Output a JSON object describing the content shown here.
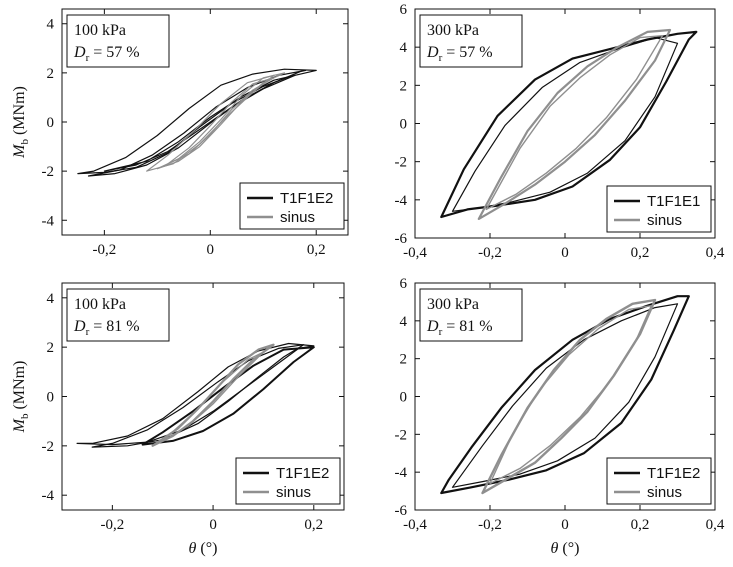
{
  "chart_data": [
    {
      "type": "line",
      "id": "p1",
      "annotation": {
        "line1": "100 kPa",
        "line2_symbol": "D",
        "line2_sub": "r",
        "line2_rest": " = 57 %"
      },
      "xlim": [
        -0.28,
        0.26
      ],
      "ylim": [
        -4.6,
        4.6
      ],
      "xticks": [
        -0.2,
        0,
        0.2
      ],
      "xtick_labels": [
        "-0,2",
        "0",
        "0,2"
      ],
      "yticks": [
        -4,
        -2,
        0,
        2,
        4
      ],
      "ytick_labels": [
        "-4",
        "-2",
        "0",
        "2",
        "4"
      ],
      "ylabel_main": "M",
      "ylabel_sub": "b",
      "ylabel_unit": " (MNm)",
      "xlabel_symbol": "",
      "xlabel_unit": "",
      "legend": [
        {
          "label": "T1F1E2",
          "color": "#111111"
        },
        {
          "label": "sinus",
          "color": "#8f8f8f"
        }
      ],
      "grid": false,
      "series": [
        {
          "color": "#111111",
          "width": 1.2,
          "x": [
            -0.25,
            -0.2,
            -0.14,
            -0.08,
            -0.02,
            0.04,
            0.1,
            0.15,
            0.2,
            0.14,
            0.08,
            0.02,
            -0.04,
            -0.1,
            -0.16,
            -0.22,
            -0.25
          ],
          "y": [
            -2.1,
            -2.05,
            -1.85,
            -1.25,
            -0.2,
            0.75,
            1.45,
            1.85,
            2.1,
            2.15,
            1.95,
            1.5,
            0.55,
            -0.55,
            -1.45,
            -2.0,
            -2.1
          ]
        },
        {
          "color": "#111111",
          "width": 1.2,
          "x": [
            -0.23,
            -0.18,
            -0.12,
            -0.06,
            0.0,
            0.06,
            0.12,
            0.17,
            0.18,
            0.13,
            0.07,
            0.01,
            -0.05,
            -0.11,
            -0.17,
            -0.23
          ],
          "y": [
            -2.2,
            -2.1,
            -1.75,
            -1.05,
            -0.05,
            0.9,
            1.6,
            2.05,
            2.1,
            1.9,
            1.4,
            0.6,
            -0.45,
            -1.35,
            -1.95,
            -2.2
          ]
        },
        {
          "color": "#111111",
          "width": 1.2,
          "x": [
            -0.2,
            -0.14,
            -0.08,
            -0.02,
            0.04,
            0.1,
            0.16,
            0.12,
            0.06,
            0.0,
            -0.06,
            -0.12,
            -0.2
          ],
          "y": [
            -2.0,
            -1.75,
            -1.2,
            -0.3,
            0.6,
            1.35,
            1.9,
            1.7,
            1.05,
            0.2,
            -0.8,
            -1.6,
            -2.0
          ]
        },
        {
          "color": "#8f8f8f",
          "width": 1.2,
          "x": [
            -0.1,
            -0.06,
            -0.02,
            0.02,
            0.06,
            0.1,
            0.14,
            0.1,
            0.06,
            0.02,
            -0.02,
            -0.06,
            -0.1
          ],
          "y": [
            -1.9,
            -1.6,
            -1.0,
            -0.1,
            0.85,
            1.6,
            2.0,
            1.8,
            1.1,
            0.1,
            -0.8,
            -1.5,
            -1.9
          ]
        },
        {
          "color": "#8f8f8f",
          "width": 1.2,
          "x": [
            -0.08,
            -0.04,
            0.0,
            0.04,
            0.08,
            0.12,
            0.08,
            0.04,
            0.0,
            -0.04,
            -0.08
          ],
          "y": [
            -1.7,
            -1.3,
            -0.5,
            0.5,
            1.3,
            1.8,
            1.55,
            0.8,
            -0.15,
            -1.05,
            -1.7
          ]
        },
        {
          "color": "#8f8f8f",
          "width": 1.2,
          "x": [
            -0.12,
            -0.07,
            -0.02,
            0.03,
            0.08,
            0.12,
            0.07,
            0.02,
            -0.03,
            -0.08,
            -0.12
          ],
          "y": [
            -2.0,
            -1.7,
            -0.9,
            0.2,
            1.2,
            1.9,
            1.6,
            0.75,
            -0.35,
            -1.35,
            -2.0
          ]
        }
      ]
    },
    {
      "type": "line",
      "id": "p2",
      "annotation": {
        "line1": "300 kPa",
        "line2_symbol": "D",
        "line2_sub": "r",
        "line2_rest": " = 57 %"
      },
      "xlim": [
        -0.4,
        0.4
      ],
      "ylim": [
        -6,
        6
      ],
      "xticks": [
        -0.4,
        -0.2,
        0,
        0.2,
        0.4
      ],
      "xtick_labels": [
        "-0,4",
        "-0,2",
        "0",
        "0,2",
        "0,4"
      ],
      "yticks": [
        -6,
        -4,
        -2,
        0,
        2,
        4,
        6
      ],
      "ytick_labels": [
        "-6",
        "-4",
        "-2",
        "0",
        "2",
        "4",
        "6"
      ],
      "ylabel_main": "",
      "ylabel_sub": "",
      "ylabel_unit": "",
      "xlabel_symbol": "",
      "xlabel_unit": "",
      "legend": [
        {
          "label": "T1F1E1",
          "color": "#111111"
        },
        {
          "label": "sinus",
          "color": "#8f8f8f"
        }
      ],
      "grid": false,
      "series": [
        {
          "color": "#111111",
          "width": 2.2,
          "x": [
            -0.33,
            -0.26,
            -0.18,
            -0.08,
            0.02,
            0.12,
            0.2,
            0.27,
            0.33,
            0.35,
            0.3,
            0.22,
            0.12,
            0.02,
            -0.08,
            -0.18,
            -0.27,
            -0.33
          ],
          "y": [
            -4.9,
            -4.5,
            -4.3,
            -4.0,
            -3.3,
            -1.9,
            -0.2,
            2.2,
            4.4,
            4.8,
            4.7,
            4.4,
            3.9,
            3.4,
            2.3,
            0.4,
            -2.4,
            -4.9
          ]
        },
        {
          "color": "#111111",
          "width": 1.2,
          "x": [
            -0.3,
            -0.22,
            -0.14,
            -0.04,
            0.06,
            0.16,
            0.24,
            0.3,
            0.24,
            0.14,
            0.04,
            -0.06,
            -0.16,
            -0.24,
            -0.3
          ],
          "y": [
            -4.6,
            -4.4,
            -4.1,
            -3.6,
            -2.6,
            -0.9,
            1.4,
            4.2,
            4.5,
            3.9,
            3.2,
            1.9,
            -0.1,
            -2.5,
            -4.6
          ]
        },
        {
          "color": "#8f8f8f",
          "width": 2.2,
          "x": [
            -0.23,
            -0.16,
            -0.08,
            0.0,
            0.08,
            0.16,
            0.24,
            0.28,
            0.22,
            0.14,
            0.06,
            -0.02,
            -0.1,
            -0.17,
            -0.23
          ],
          "y": [
            -5.0,
            -4.2,
            -3.2,
            -2.0,
            -0.6,
            1.2,
            3.3,
            4.9,
            4.8,
            4.0,
            3.0,
            1.6,
            -0.4,
            -2.8,
            -5.0
          ]
        },
        {
          "color": "#8f8f8f",
          "width": 1.4,
          "x": [
            -0.21,
            -0.13,
            -0.05,
            0.03,
            0.11,
            0.19,
            0.26,
            0.2,
            0.12,
            0.04,
            -0.04,
            -0.12,
            -0.21
          ],
          "y": [
            -4.5,
            -3.7,
            -2.6,
            -1.3,
            0.3,
            2.3,
            4.6,
            4.5,
            3.6,
            2.4,
            0.9,
            -1.3,
            -4.5
          ]
        }
      ]
    },
    {
      "type": "line",
      "id": "p3",
      "annotation": {
        "line1": "100 kPa",
        "line2_symbol": "D",
        "line2_sub": "r",
        "line2_rest": " = 81 %"
      },
      "xlim": [
        -0.3,
        0.26
      ],
      "ylim": [
        -4.6,
        4.6
      ],
      "xticks": [
        -0.2,
        0,
        0.2
      ],
      "xtick_labels": [
        "-0,2",
        "0",
        "0,2"
      ],
      "yticks": [
        -4,
        -2,
        0,
        2,
        4
      ],
      "ytick_labels": [
        "-4",
        "-2",
        "0",
        "2",
        "4"
      ],
      "ylabel_main": "M",
      "ylabel_sub": "b",
      "ylabel_unit": " (MNm)",
      "xlabel_symbol": "θ",
      "xlabel_unit": " (°)",
      "legend": [
        {
          "label": "T1F1E2",
          "color": "#111111"
        },
        {
          "label": "sinus",
          "color": "#8f8f8f"
        }
      ],
      "grid": false,
      "series": [
        {
          "color": "#111111",
          "width": 1.2,
          "x": [
            -0.27,
            -0.2,
            -0.13,
            -0.06,
            0.0,
            0.06,
            0.12,
            0.17,
            0.2,
            0.15,
            0.09,
            0.03,
            -0.03,
            -0.1,
            -0.17,
            -0.24,
            -0.27
          ],
          "y": [
            -1.9,
            -1.95,
            -1.85,
            -1.35,
            -0.6,
            0.3,
            1.2,
            1.95,
            2.05,
            2.15,
            1.85,
            1.2,
            0.2,
            -0.9,
            -1.6,
            -1.9,
            -1.9
          ]
        },
        {
          "color": "#111111",
          "width": 1.2,
          "x": [
            -0.24,
            -0.17,
            -0.1,
            -0.03,
            0.03,
            0.09,
            0.14,
            0.18,
            0.13,
            0.07,
            0.01,
            -0.06,
            -0.13,
            -0.2,
            -0.24
          ],
          "y": [
            -2.05,
            -2.0,
            -1.75,
            -1.1,
            -0.2,
            0.8,
            1.6,
            2.1,
            1.95,
            1.45,
            0.6,
            -0.45,
            -1.35,
            -1.9,
            -2.05
          ]
        },
        {
          "color": "#111111",
          "width": 2.0,
          "x": [
            -0.14,
            -0.08,
            -0.02,
            0.04,
            0.1,
            0.16,
            0.2,
            0.14,
            0.08,
            0.02,
            -0.04,
            -0.1,
            -0.14
          ],
          "y": [
            -1.95,
            -1.8,
            -1.4,
            -0.7,
            0.3,
            1.4,
            2.0,
            1.9,
            1.25,
            0.35,
            -0.6,
            -1.45,
            -1.95
          ]
        },
        {
          "color": "#8f8f8f",
          "width": 2.2,
          "x": [
            -0.12,
            -0.08,
            -0.04,
            0.0,
            0.04,
            0.08,
            0.12,
            0.09,
            0.05,
            0.01,
            -0.03,
            -0.07,
            -0.12
          ],
          "y": [
            -2.0,
            -1.6,
            -1.0,
            -0.2,
            0.7,
            1.5,
            2.1,
            1.9,
            1.3,
            0.4,
            -0.5,
            -1.3,
            -2.0
          ]
        },
        {
          "color": "#8f8f8f",
          "width": 1.3,
          "x": [
            -0.1,
            -0.05,
            0.0,
            0.05,
            0.1,
            0.07,
            0.02,
            -0.03,
            -0.1
          ],
          "y": [
            -1.8,
            -1.2,
            -0.3,
            0.8,
            1.8,
            1.5,
            0.6,
            -0.5,
            -1.8
          ]
        }
      ]
    },
    {
      "type": "line",
      "id": "p4",
      "annotation": {
        "line1": "300 kPa",
        "line2_symbol": "D",
        "line2_sub": "r",
        "line2_rest": " = 81 %"
      },
      "xlim": [
        -0.4,
        0.4
      ],
      "ylim": [
        -6,
        6
      ],
      "xticks": [
        -0.4,
        -0.2,
        0,
        0.2,
        0.4
      ],
      "xtick_labels": [
        "-0,4",
        "-0,2",
        "0",
        "0,2",
        "0,4"
      ],
      "yticks": [
        -6,
        -4,
        -2,
        0,
        2,
        4,
        6
      ],
      "ytick_labels": [
        "-6",
        "-4",
        "-2",
        "0",
        "2",
        "4",
        "6"
      ],
      "ylabel_main": "",
      "ylabel_sub": "",
      "ylabel_unit": "",
      "xlabel_symbol": "θ",
      "xlabel_unit": " (°)",
      "legend": [
        {
          "label": "T1F1E2",
          "color": "#111111"
        },
        {
          "label": "sinus",
          "color": "#8f8f8f"
        }
      ],
      "grid": false,
      "series": [
        {
          "color": "#111111",
          "width": 2.2,
          "x": [
            -0.33,
            -0.25,
            -0.15,
            -0.05,
            0.05,
            0.15,
            0.23,
            0.29,
            0.33,
            0.3,
            0.22,
            0.12,
            0.02,
            -0.08,
            -0.17,
            -0.25,
            -0.31,
            -0.33
          ],
          "y": [
            -5.1,
            -4.8,
            -4.4,
            -3.9,
            -3.0,
            -1.4,
            0.9,
            3.5,
            5.3,
            5.3,
            4.8,
            4.1,
            3.0,
            1.4,
            -0.6,
            -2.7,
            -4.4,
            -5.1
          ]
        },
        {
          "color": "#111111",
          "width": 1.2,
          "x": [
            -0.3,
            -0.22,
            -0.12,
            -0.02,
            0.08,
            0.17,
            0.24,
            0.3,
            0.24,
            0.15,
            0.05,
            -0.05,
            -0.14,
            -0.22,
            -0.3
          ],
          "y": [
            -4.8,
            -4.5,
            -4.1,
            -3.4,
            -2.2,
            -0.3,
            2.1,
            4.9,
            4.7,
            4.0,
            3.0,
            1.5,
            -0.5,
            -2.6,
            -4.8
          ]
        },
        {
          "color": "#8f8f8f",
          "width": 2.4,
          "x": [
            -0.22,
            -0.15,
            -0.08,
            -0.01,
            0.06,
            0.13,
            0.2,
            0.24,
            0.18,
            0.11,
            0.04,
            -0.03,
            -0.1,
            -0.17,
            -0.22
          ],
          "y": [
            -5.1,
            -4.3,
            -3.5,
            -2.2,
            -0.8,
            1.1,
            3.3,
            5.1,
            4.9,
            4.1,
            3.0,
            1.4,
            -0.6,
            -3.1,
            -5.1
          ]
        },
        {
          "color": "#8f8f8f",
          "width": 1.4,
          "x": [
            -0.2,
            -0.12,
            -0.04,
            0.04,
            0.12,
            0.19,
            0.23,
            0.17,
            0.09,
            0.01,
            -0.07,
            -0.14,
            -0.2
          ],
          "y": [
            -4.6,
            -3.8,
            -2.6,
            -1.1,
            0.8,
            3.0,
            4.8,
            4.6,
            3.6,
            2.2,
            0.3,
            -2.0,
            -4.6
          ]
        }
      ]
    }
  ]
}
